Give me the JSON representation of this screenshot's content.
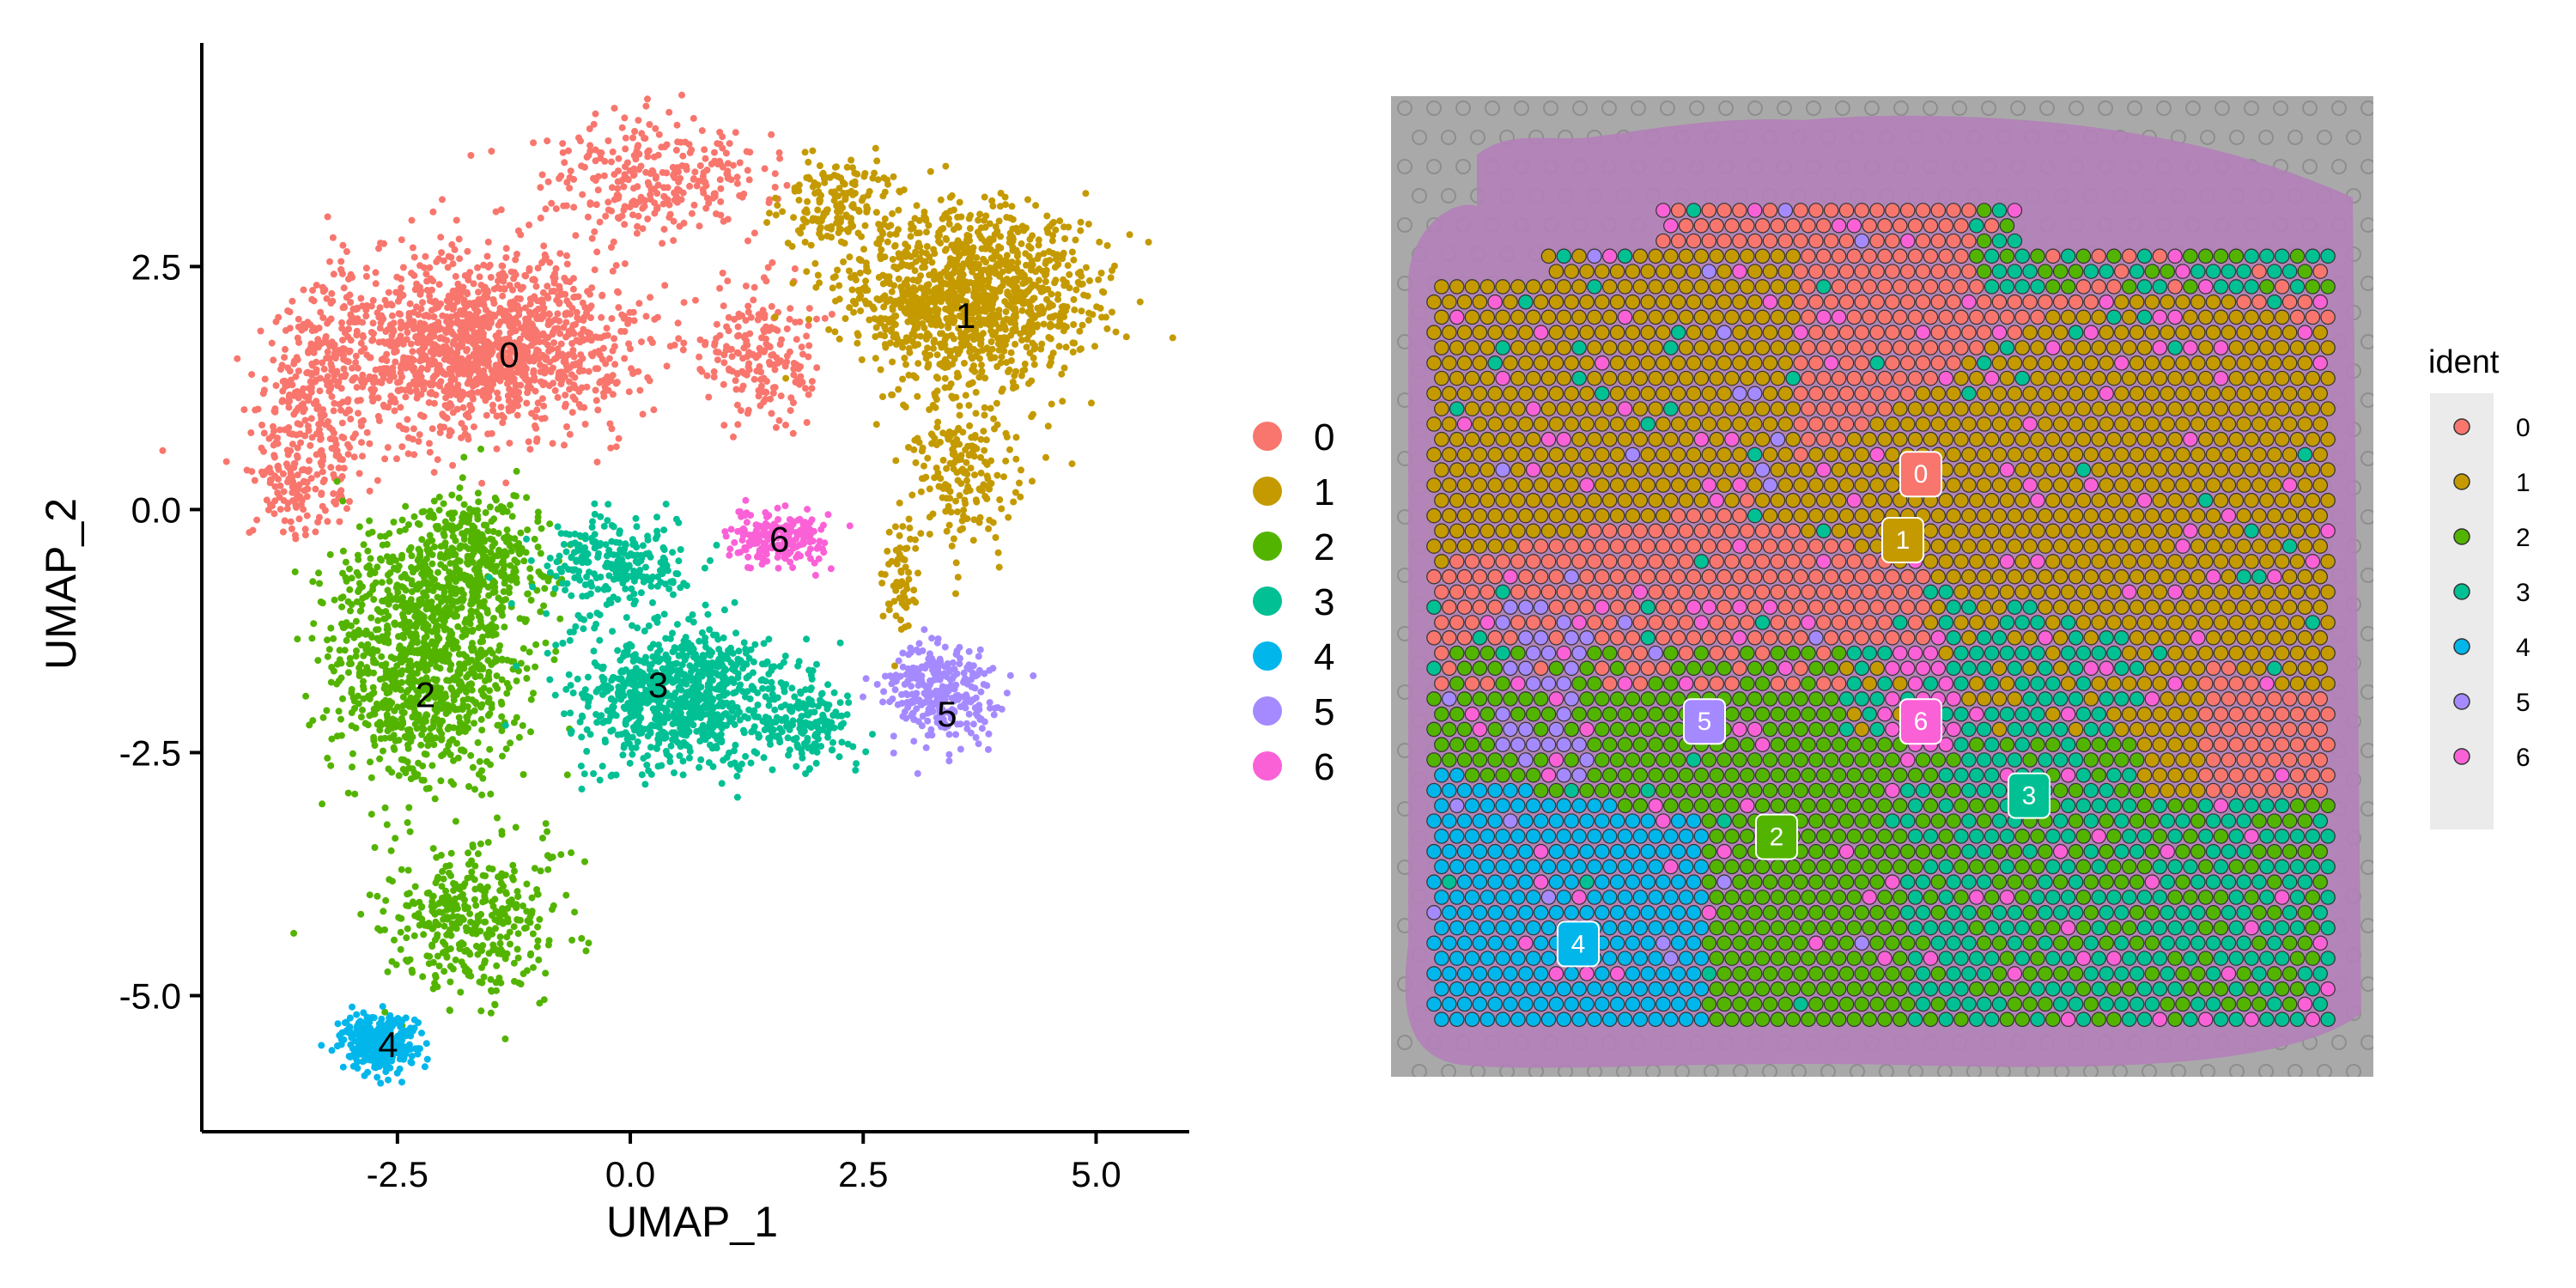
{
  "colors": {
    "0": "#F8766D",
    "1": "#C49A00",
    "2": "#53B400",
    "3": "#00C094",
    "4": "#00B6EB",
    "5": "#A58AFF",
    "6": "#FB61D7",
    "tissue": "#B27FB8",
    "slide": "#A9A9A9"
  },
  "chart_data": [
    {
      "type": "scatter",
      "panel": "umap",
      "xlabel": "UMAP_1",
      "ylabel": "UMAP_2",
      "xlim": [
        -4.6,
        6.0
      ],
      "ylim": [
        -6.4,
        4.8
      ],
      "xticks": [
        -2.5,
        0.0,
        2.5,
        5.0
      ],
      "yticks": [
        -5.0,
        -2.5,
        0.0,
        2.5
      ],
      "xtick_labels": [
        "-2.5",
        "0.0",
        "2.5",
        "5.0"
      ],
      "ytick_labels": [
        "-5.0",
        "-2.5",
        "0.0",
        "2.5"
      ],
      "grid": false,
      "legend": "right",
      "legend_entries": [
        "0",
        "1",
        "2",
        "3",
        "4",
        "5",
        "6"
      ],
      "clusters": [
        {
          "id": "0",
          "label": "0",
          "label_pos": [
            -1.3,
            1.6
          ],
          "regions": [
            [
              -1.6,
              1.7,
              1.6,
              0.9,
              1400
            ],
            [
              -3.3,
              1.2,
              0.7,
              1.0,
              300
            ],
            [
              1.4,
              1.6,
              0.6,
              0.7,
              200
            ],
            [
              0.2,
              3.4,
              1.2,
              0.6,
              300
            ],
            [
              -3.6,
              0.2,
              0.5,
              0.5,
              120
            ]
          ]
        },
        {
          "id": "1",
          "label": "1",
          "label_pos": [
            3.6,
            2.0
          ],
          "regions": [
            [
              3.6,
              2.2,
              1.3,
              0.9,
              1200
            ],
            [
              2.2,
              3.2,
              0.6,
              0.5,
              150
            ],
            [
              3.6,
              0.4,
              0.6,
              0.8,
              200
            ],
            [
              2.9,
              -0.7,
              0.2,
              0.6,
              60
            ]
          ]
        },
        {
          "id": "2",
          "label": "2",
          "label_pos": [
            -2.2,
            -1.9
          ],
          "regions": [
            [
              -2.2,
              -1.5,
              1.0,
              1.3,
              1100
            ],
            [
              -1.6,
              -0.5,
              0.7,
              0.6,
              300
            ],
            [
              -1.7,
              -4.2,
              0.9,
              0.8,
              400
            ]
          ]
        },
        {
          "id": "3",
          "label": "3",
          "label_pos": [
            0.3,
            -1.8
          ],
          "regions": [
            [
              0.5,
              -1.9,
              1.1,
              0.7,
              900
            ],
            [
              -0.2,
              -0.6,
              0.8,
              0.5,
              250
            ],
            [
              1.9,
              -2.2,
              0.5,
              0.4,
              150
            ]
          ]
        },
        {
          "id": "4",
          "label": "4",
          "label_pos": [
            -2.6,
            -5.5
          ],
          "regions": [
            [
              -2.7,
              -5.5,
              0.4,
              0.3,
              300
            ]
          ]
        },
        {
          "id": "5",
          "label": "5",
          "label_pos": [
            3.4,
            -2.1
          ],
          "regions": [
            [
              3.3,
              -1.9,
              0.6,
              0.5,
              300
            ]
          ]
        },
        {
          "id": "6",
          "label": "6",
          "label_pos": [
            1.6,
            -0.3
          ],
          "regions": [
            [
              1.6,
              -0.3,
              0.5,
              0.3,
              200
            ]
          ]
        }
      ]
    },
    {
      "type": "scatter",
      "panel": "spatial",
      "legend_title": "ident",
      "legend": "right",
      "legend_entries": [
        "0",
        "1",
        "2",
        "3",
        "4",
        "5",
        "6"
      ],
      "spot_labels": [
        {
          "id": "0",
          "label": "0",
          "pos": [
            0.54,
            0.32
          ]
        },
        {
          "id": "1",
          "label": "1",
          "pos": [
            0.52,
            0.4
          ]
        },
        {
          "id": "5",
          "label": "5",
          "pos": [
            0.3,
            0.62
          ]
        },
        {
          "id": "6",
          "label": "6",
          "pos": [
            0.54,
            0.62
          ]
        },
        {
          "id": "3",
          "label": "3",
          "pos": [
            0.66,
            0.71
          ]
        },
        {
          "id": "2",
          "label": "2",
          "pos": [
            0.38,
            0.76
          ]
        },
        {
          "id": "4",
          "label": "4",
          "pos": [
            0.16,
            0.89
          ]
        }
      ]
    }
  ]
}
